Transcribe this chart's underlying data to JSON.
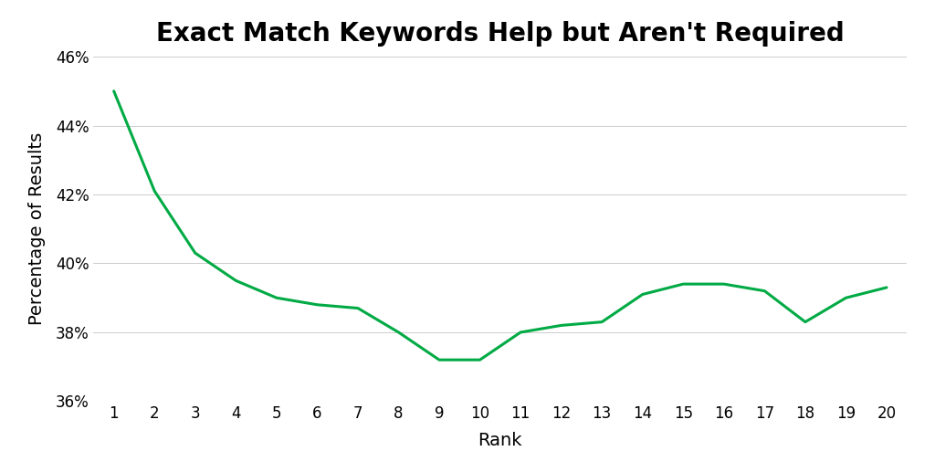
{
  "title": "Exact Match Keywords Help but Aren't Required",
  "xlabel": "Rank",
  "ylabel": "Percentage of Results",
  "x": [
    1,
    2,
    3,
    4,
    5,
    6,
    7,
    8,
    9,
    10,
    11,
    12,
    13,
    14,
    15,
    16,
    17,
    18,
    19,
    20
  ],
  "y": [
    45.0,
    42.1,
    40.3,
    39.5,
    39.0,
    38.8,
    38.7,
    38.0,
    37.2,
    37.2,
    38.0,
    38.2,
    38.3,
    39.1,
    39.4,
    39.4,
    39.2,
    38.3,
    39.0,
    39.3
  ],
  "line_color": "#00aa44",
  "background_color": "#ffffff",
  "ylim": [
    36,
    46
  ],
  "yticks": [
    36,
    38,
    40,
    42,
    44,
    46
  ],
  "xlim": [
    0.5,
    20.5
  ],
  "xticks": [
    1,
    2,
    3,
    4,
    5,
    6,
    7,
    8,
    9,
    10,
    11,
    12,
    13,
    14,
    15,
    16,
    17,
    18,
    19,
    20
  ],
  "title_fontsize": 20,
  "axis_label_fontsize": 14,
  "tick_fontsize": 12,
  "line_width": 2.2,
  "grid_color": "#cccccc",
  "grid_alpha": 1.0
}
